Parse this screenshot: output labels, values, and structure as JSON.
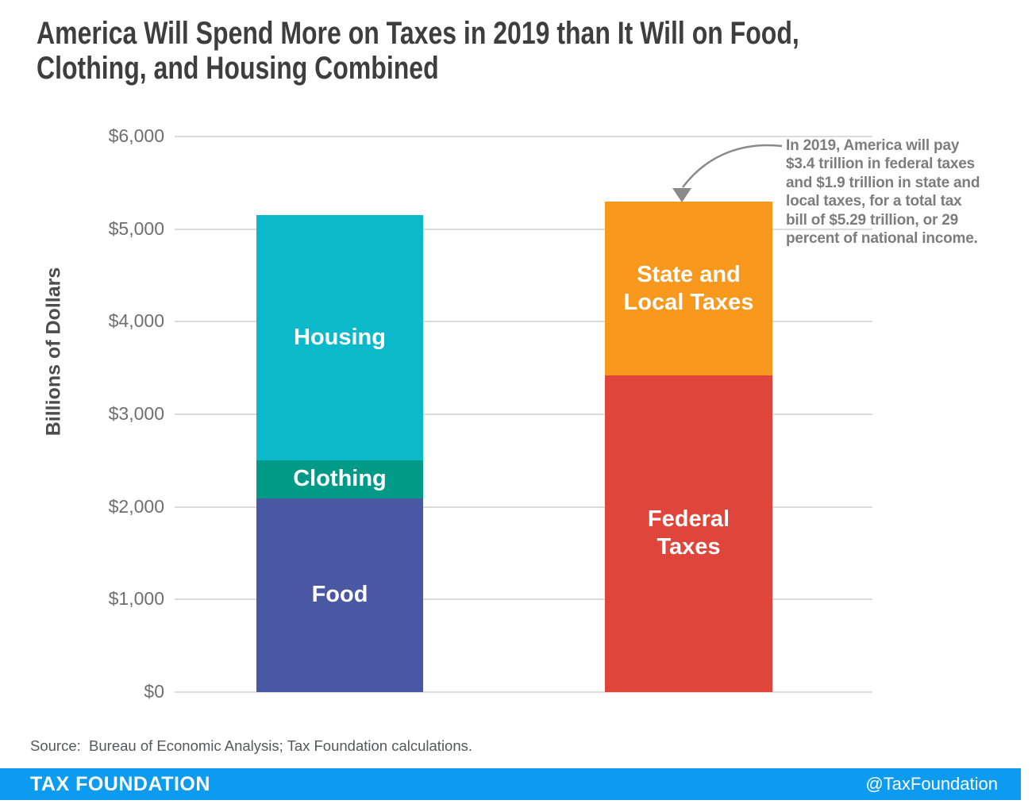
{
  "title": {
    "lines": [
      "America Will Spend More on Taxes in 2019 than It Will on Food,",
      "Clothing, and Housing Combined"
    ]
  },
  "chart_data": {
    "type": "bar",
    "stacked": true,
    "title": "America Will Spend More on Taxes in 2019 than It Will on Food, Clothing, and Housing Combined",
    "xlabel": "",
    "ylabel": "Billions of Dollars",
    "ylim": [
      0,
      6000
    ],
    "grid": true,
    "y_ticks": [
      {
        "value": 0,
        "label": "$0"
      },
      {
        "value": 1000,
        "label": "$1,000"
      },
      {
        "value": 2000,
        "label": "$2,000"
      },
      {
        "value": 3000,
        "label": "$3,000"
      },
      {
        "value": 4000,
        "label": "$4,000"
      },
      {
        "value": 5000,
        "label": "$5,000"
      },
      {
        "value": 6000,
        "label": "$6,000"
      }
    ],
    "bars": [
      {
        "name": "household-spending",
        "total": 5154,
        "segments": [
          {
            "label": "Food",
            "value": 2094,
            "color": "#4a58a4"
          },
          {
            "label": "Clothing",
            "value": 411,
            "color": "#019a87"
          },
          {
            "label": "Housing",
            "value": 2649,
            "color": "#0cb9cb"
          }
        ]
      },
      {
        "name": "taxes",
        "total": 5294,
        "segments": [
          {
            "label": "Federal\nTaxes",
            "value": 3422,
            "color": "#e0453c"
          },
          {
            "label": "State and\nLocal Taxes",
            "value": 1872,
            "color": "#f8981d"
          }
        ]
      }
    ]
  },
  "annotation": {
    "lines": [
      "In 2019, America will pay",
      "$3.4 trillion in federal taxes",
      "and $1.9 trillion in state and",
      "local taxes, for a total tax",
      "bill of $5.29 trillion, or 29",
      "percent of national income."
    ],
    "arrow_color": "#8a8a8a"
  },
  "source": {
    "text": "Source:  Bureau of Economic Analysis; Tax Foundation calculations."
  },
  "footer": {
    "brand": "TAX FOUNDATION",
    "handle": "@TaxFoundation",
    "bg_color": "#0d9bf2"
  }
}
